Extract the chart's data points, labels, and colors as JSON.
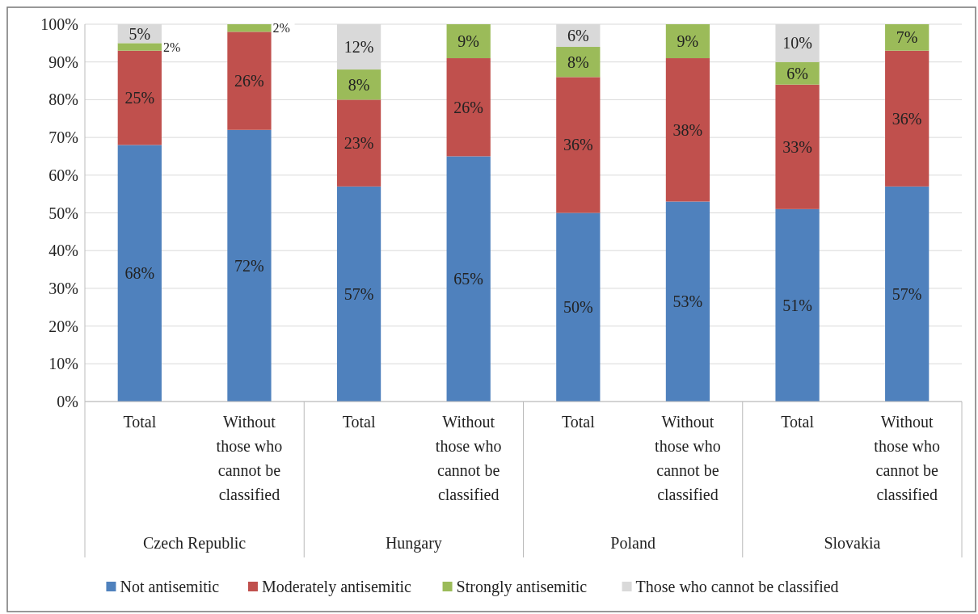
{
  "chart_data": {
    "type": "bar",
    "stacked": true,
    "categories": [
      "Total",
      "Without those who cannot be classified",
      "Total",
      "Without those who cannot be classified",
      "Total",
      "Without those who cannot be classified",
      "Total",
      "Without those who cannot be classified"
    ],
    "annotations": [
      "Czech Republic",
      "Hungary",
      "Poland",
      "Slovakia"
    ],
    "series": [
      {
        "name": "Not antisemitic",
        "color": "#4f81bd",
        "values": [
          68,
          72,
          57,
          65,
          50,
          53,
          51,
          57
        ],
        "value_labels": [
          "68%",
          "72%",
          "57%",
          "65%",
          "50%",
          "53%",
          "51%",
          "57%"
        ]
      },
      {
        "name": "Moderately antisemitic",
        "color": "#c0504d",
        "values": [
          25,
          26,
          23,
          26,
          36,
          38,
          33,
          36
        ],
        "value_labels": [
          "25%",
          "26%",
          "23%",
          "26%",
          "36%",
          "38%",
          "33%",
          "36%"
        ]
      },
      {
        "name": "Strongly antisemitic",
        "color": "#9bbb59",
        "values": [
          2,
          2,
          8,
          9,
          8,
          9,
          6,
          7
        ],
        "value_labels": [
          "2%",
          "2%",
          "8%",
          "9%",
          "8%",
          "9%",
          "6%",
          "7%"
        ]
      },
      {
        "name": "Those who cannot be classified",
        "color": "#d9d9d9",
        "values": [
          5,
          null,
          12,
          null,
          6,
          null,
          10,
          null
        ],
        "value_labels": [
          "5%",
          null,
          "12%",
          null,
          "6%",
          null,
          "10%",
          null
        ]
      }
    ],
    "ylim": [
      0,
      100
    ],
    "yticks": [
      {
        "value": 0,
        "label": "0%"
      },
      {
        "value": 10,
        "label": "10%"
      },
      {
        "value": 20,
        "label": "20%"
      },
      {
        "value": 30,
        "label": "30%"
      },
      {
        "value": 40,
        "label": "40%"
      },
      {
        "value": 50,
        "label": "50%"
      },
      {
        "value": 60,
        "label": "60%"
      },
      {
        "value": 70,
        "label": "70%"
      },
      {
        "value": 80,
        "label": "80%"
      },
      {
        "value": 90,
        "label": "90%"
      },
      {
        "value": 100,
        "label": "100%"
      }
    ],
    "grid": "y",
    "legend": "bottom"
  }
}
